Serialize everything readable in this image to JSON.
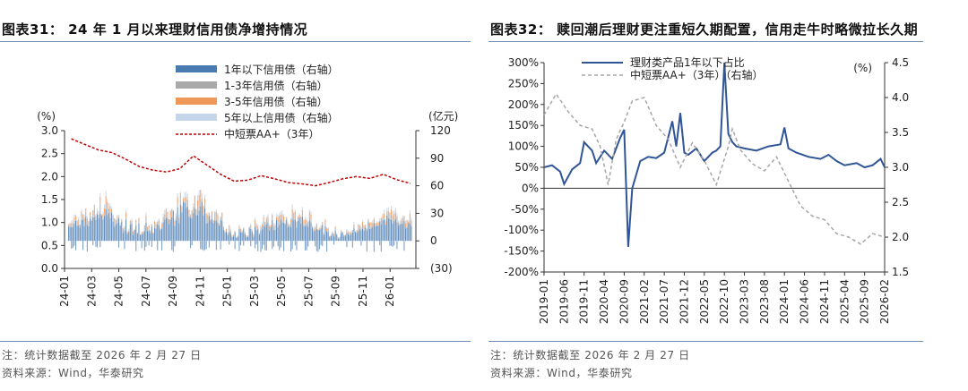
{
  "left": {
    "title": "图表31：  24 年 1 月以来理财信用债净增持情况",
    "note": "注：统计数据截至 2026 年 2 月 27 日",
    "source": "资料来源：Wind，华泰研究",
    "chart_data": {
      "type": "bar",
      "left_unit": "(%)",
      "right_unit": "(亿元)",
      "yleft": {
        "min": 0.0,
        "max": 3.0,
        "ticks": [
          "0.0",
          "0.5",
          "1.0",
          "1.5",
          "2.0",
          "2.5",
          "3.0"
        ]
      },
      "yright": {
        "min": -30,
        "max": 120,
        "ticks": [
          "(30)",
          "0",
          "30",
          "60",
          "90",
          "120"
        ]
      },
      "x_ticks": [
        "24-01",
        "24-03",
        "24-05",
        "24-07",
        "24-09",
        "24-11",
        "25-01",
        "25-03",
        "25-05",
        "25-07",
        "25-09",
        "25-11",
        "26-01"
      ],
      "legend": [
        {
          "name": "1年以下信用债（右轴）",
          "color": "#4a7bb0",
          "kind": "bar"
        },
        {
          "name": "1-3年信用债（右轴）",
          "color": "#a9a9a9",
          "kind": "bar"
        },
        {
          "name": "3-5年信用债（右轴）",
          "color": "#f0975a",
          "kind": "bar"
        },
        {
          "name": "5年以上信用债（右轴）",
          "color": "#c6d6ea",
          "kind": "bar"
        },
        {
          "name": "中短票AA+（3年）",
          "color": "#c00000",
          "kind": "line"
        }
      ],
      "line_series": {
        "name": "中短票AA+（3年）",
        "x": [
          "24-01",
          "24-02",
          "24-03",
          "24-04",
          "24-05",
          "24-06",
          "24-07",
          "24-08",
          "24-09",
          "24-10",
          "24-11",
          "24-12",
          "25-01",
          "25-02",
          "25-03",
          "25-04",
          "25-05",
          "25-06",
          "25-07",
          "25-08",
          "25-09",
          "25-10",
          "25-11",
          "25-12",
          "26-01",
          "26-02"
        ],
        "values": [
          2.82,
          2.7,
          2.58,
          2.52,
          2.38,
          2.22,
          2.14,
          2.1,
          2.17,
          2.45,
          2.25,
          2.05,
          1.9,
          1.92,
          2.02,
          1.95,
          1.87,
          1.84,
          1.8,
          1.87,
          1.95,
          2.0,
          1.96,
          2.05,
          1.93,
          1.85
        ]
      },
      "bar_series": [
        {
          "name": "1年以下信用债（右轴）",
          "approx_range": [
            0,
            35
          ]
        },
        {
          "name": "1-3年信用债（右轴）",
          "approx_range": [
            0,
            25
          ]
        },
        {
          "name": "3-5年信用债（右轴）",
          "approx_range": [
            0,
            15
          ]
        },
        {
          "name": "5年以上信用债（右轴）",
          "approx_range": [
            0,
            10
          ]
        }
      ]
    }
  },
  "right": {
    "title": "图表32：  赎回潮后理财更注重短久期配置，信用走牛时略微拉长久期",
    "note": "注：统计数据截至 2026 年 2 月 27 日",
    "source": "资料来源：Wind，华泰研究",
    "chart_data": {
      "type": "line",
      "right_unit": "(%)",
      "yleft": {
        "min": -200,
        "max": 300,
        "ticks": [
          "-200%",
          "-150%",
          "-100%",
          "-50%",
          "0%",
          "50%",
          "100%",
          "150%",
          "200%",
          "250%",
          "300%"
        ]
      },
      "yright": {
        "min": 1.5,
        "max": 4.5,
        "ticks": [
          "1.5",
          "2.0",
          "2.5",
          "3.0",
          "3.5",
          "4.0",
          "4.5"
        ]
      },
      "x_ticks": [
        "2019-01",
        "2019-06",
        "2019-11",
        "2020-04",
        "2020-09",
        "2021-02",
        "2021-07",
        "2021-12",
        "2022-05",
        "2022-10",
        "2023-03",
        "2023-08",
        "2024-01",
        "2024-06",
        "2024-11",
        "2025-04",
        "2025-09",
        "2026-02"
      ],
      "series": [
        {
          "name": "理财类产品1年以下占比",
          "axis": "left",
          "color": "#2f5597",
          "x": [
            "2019-01",
            "2019-03",
            "2019-05",
            "2019-06",
            "2019-08",
            "2019-10",
            "2019-11",
            "2020-01",
            "2020-02",
            "2020-04",
            "2020-06",
            "2020-08",
            "2020-09",
            "2020-10",
            "2020-11",
            "2021-01",
            "2021-03",
            "2021-05",
            "2021-07",
            "2021-09",
            "2021-10",
            "2021-11",
            "2021-12",
            "2022-01",
            "2022-03",
            "2022-05",
            "2022-07",
            "2022-08",
            "2022-09",
            "2022-10",
            "2022-11",
            "2022-12",
            "2023-01",
            "2023-03",
            "2023-06",
            "2023-09",
            "2023-12",
            "2024-01",
            "2024-02",
            "2024-04",
            "2024-07",
            "2024-10",
            "2024-12",
            "2025-02",
            "2025-04",
            "2025-07",
            "2025-09",
            "2025-11",
            "2026-01",
            "2026-02"
          ],
          "values": [
            50,
            55,
            40,
            10,
            45,
            60,
            110,
            90,
            60,
            90,
            70,
            120,
            140,
            -140,
            0,
            65,
            75,
            72,
            85,
            160,
            100,
            180,
            85,
            80,
            95,
            65,
            85,
            90,
            100,
            300,
            130,
            110,
            100,
            95,
            90,
            100,
            105,
            145,
            95,
            85,
            75,
            70,
            80,
            65,
            55,
            60,
            50,
            55,
            70,
            50
          ]
        },
        {
          "name": "中短票AA+（3年）（右轴）",
          "axis": "right",
          "color": "#a6a6a6",
          "x": [
            "2019-01",
            "2019-04",
            "2019-07",
            "2019-10",
            "2020-01",
            "2020-03",
            "2020-05",
            "2020-07",
            "2020-09",
            "2020-11",
            "2021-02",
            "2021-05",
            "2021-08",
            "2021-11",
            "2022-02",
            "2022-05",
            "2022-08",
            "2022-11",
            "2022-12",
            "2023-02",
            "2023-05",
            "2023-08",
            "2023-11",
            "2024-02",
            "2024-05",
            "2024-08",
            "2024-11",
            "2025-02",
            "2025-05",
            "2025-08",
            "2025-11",
            "2026-02"
          ],
          "values": [
            3.75,
            4.05,
            3.8,
            3.6,
            3.55,
            3.3,
            2.75,
            3.4,
            3.65,
            3.95,
            4.0,
            3.6,
            3.4,
            3.0,
            3.35,
            3.1,
            2.75,
            3.3,
            3.55,
            3.25,
            3.05,
            2.95,
            3.15,
            2.8,
            2.45,
            2.3,
            2.25,
            2.05,
            2.0,
            1.9,
            2.05,
            2.0
          ]
        }
      ]
    }
  }
}
